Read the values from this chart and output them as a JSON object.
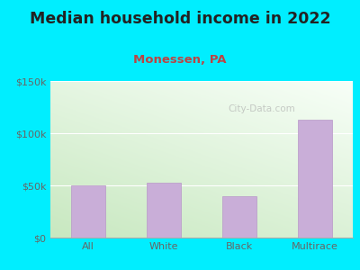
{
  "title": "Median household income in 2022",
  "subtitle": "Monessen, PA",
  "categories": [
    "All",
    "White",
    "Black",
    "Multirace"
  ],
  "values": [
    50000,
    53000,
    40000,
    113000
  ],
  "bar_color": "#c9aed8",
  "bar_edge_color": "#b898c8",
  "background_outer": "#00eeff",
  "bg_top_left": "#d0ecd0",
  "bg_bottom_right": "#f8fff8",
  "title_color": "#222222",
  "subtitle_color": "#bb4444",
  "tick_label_color": "#666666",
  "ytick_labels": [
    "$0",
    "$50k",
    "$100k",
    "$150k"
  ],
  "ytick_values": [
    0,
    50000,
    100000,
    150000
  ],
  "ylim": [
    0,
    150000
  ],
  "watermark": "City-Data.com",
  "title_fontsize": 12.5,
  "subtitle_fontsize": 9.5,
  "tick_fontsize": 8
}
